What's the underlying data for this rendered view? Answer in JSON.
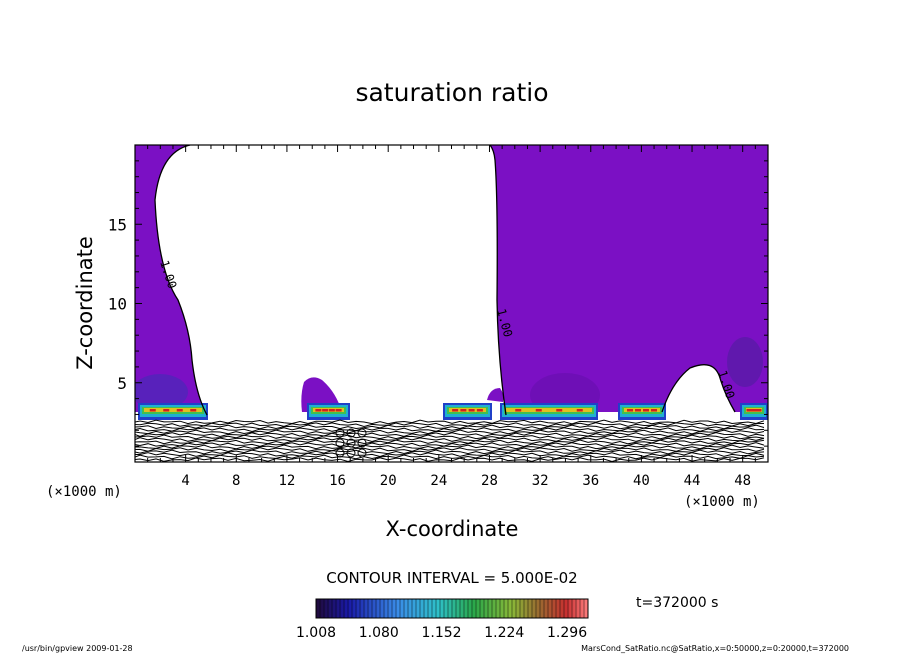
{
  "chart_data": {
    "type": "heatmap",
    "title": "saturation ratio",
    "xlabel": "X-coordinate",
    "ylabel": "Z-coordinate",
    "x_unit": "(×1000 m)",
    "x_unit_right": "(×1000 m)",
    "xlim": [
      0,
      50
    ],
    "ylim": [
      0,
      20
    ],
    "x_ticks": [
      "4",
      "8",
      "12",
      "16",
      "20",
      "24",
      "28",
      "32",
      "36",
      "40",
      "44",
      "48"
    ],
    "y_ticks": [
      "5",
      "10",
      "15"
    ],
    "contour_labels": [
      "1.00",
      "1.00",
      "1.00"
    ],
    "contour_interval_text": "CONTOUR INTERVAL = 5.000E-02",
    "time_text": "t=372000 s",
    "colorbar": {
      "range": [
        1.008,
        1.32
      ],
      "tick_labels": [
        "1.008",
        "1.080",
        "1.152",
        "1.224",
        "1.296"
      ]
    },
    "colors": {
      "supersaturated_fill": "#7b10c4",
      "background": "#ffffff"
    }
  },
  "footer": {
    "left": "/usr/bin/gpview  2009-01-28",
    "right": "MarsCond_SatRatio.nc@SatRatio,x=0:50000,z=0:20000,t=372000"
  }
}
